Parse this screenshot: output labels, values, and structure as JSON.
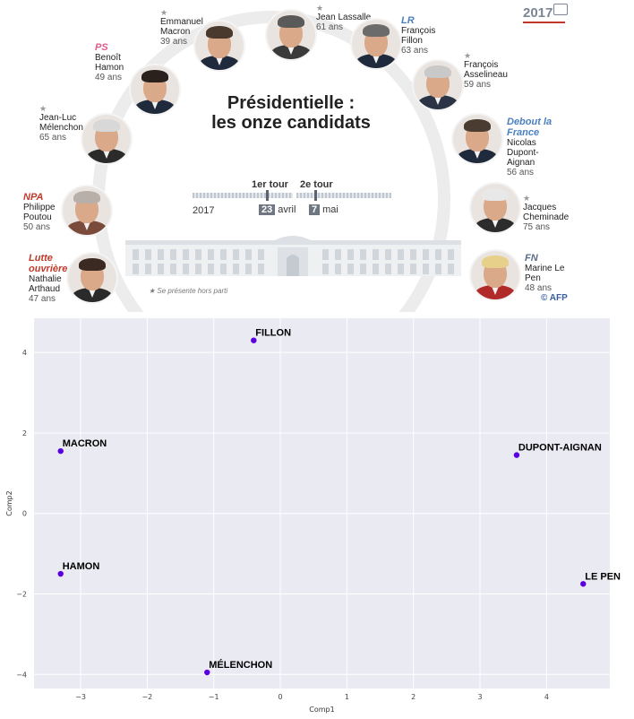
{
  "infographic": {
    "title_line1": "Présidentielle :",
    "title_line2": "les onze candidats",
    "year_logo": "2017",
    "first_round_label": "1er tour",
    "second_round_label": "2e tour",
    "year": "2017",
    "first_round_day": "23",
    "first_round_month": "avril",
    "second_round_day": "7",
    "second_round_month": "mai",
    "footnote": "★ Se présente hors parti",
    "credit": "© AFP",
    "candidates": [
      {
        "party": "Lutte ouvrière",
        "name": "Nathalie Arthaud",
        "age": "47 ans",
        "star": "",
        "party_color": "#c0392b"
      },
      {
        "party": "NPA",
        "name": "Philippe Poutou",
        "age": "50 ans",
        "star": "",
        "party_color": "#c0392b"
      },
      {
        "party": "",
        "name": "Jean-Luc Mélenchon",
        "age": "65 ans",
        "star": "★",
        "party_color": "#c0392b"
      },
      {
        "party": "PS",
        "name": "Benoît Hamon",
        "age": "49 ans",
        "star": "",
        "party_color": "#e05a8c"
      },
      {
        "party": "",
        "name": "Emmanuel Macron",
        "age": "39 ans",
        "star": "★",
        "party_color": "#333333"
      },
      {
        "party": "",
        "name": "Jean Lassalle",
        "age": "61 ans",
        "star": "★",
        "party_color": "#333333"
      },
      {
        "party": "LR",
        "name": "François Fillon",
        "age": "63 ans",
        "star": "",
        "party_color": "#4a7fc1"
      },
      {
        "party": "",
        "name": "François Asselineau",
        "age": "59 ans",
        "star": "★",
        "party_color": "#333333"
      },
      {
        "party": "Debout la France",
        "name": "Nicolas Dupont-Aignan",
        "age": "56 ans",
        "star": "",
        "party_color": "#4a7fc1"
      },
      {
        "party": "",
        "name": "Jacques Cheminade",
        "age": "75 ans",
        "star": "★",
        "party_color": "#333333"
      },
      {
        "party": "FN",
        "name": "Marine Le Pen",
        "age": "48 ans",
        "star": "",
        "party_color": "#5a6d8a"
      }
    ]
  },
  "chart_data": {
    "type": "scatter",
    "xlabel": "Comp1",
    "ylabel": "Comp2",
    "xlim": [
      -3.7,
      4.95
    ],
    "ylim": [
      -4.35,
      4.85
    ],
    "xticks": [
      -3,
      -2,
      -1,
      0,
      1,
      2,
      3,
      4
    ],
    "yticks": [
      -4,
      -2,
      0,
      2,
      4
    ],
    "grid": true,
    "point_color": "#5a00e0",
    "points": [
      {
        "label": "FILLON",
        "x": -0.4,
        "y": 4.3
      },
      {
        "label": "MACRON",
        "x": -3.3,
        "y": 1.55
      },
      {
        "label": "DUPONT-AIGNAN",
        "x": 3.55,
        "y": 1.45
      },
      {
        "label": "HAMON",
        "x": -3.3,
        "y": -1.5
      },
      {
        "label": "LE PEN",
        "x": 4.55,
        "y": -1.75
      },
      {
        "label": "MÉLENCHON",
        "x": -1.1,
        "y": -3.95
      }
    ]
  }
}
